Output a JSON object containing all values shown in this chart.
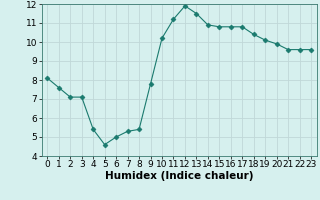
{
  "x": [
    0,
    1,
    2,
    3,
    4,
    5,
    6,
    7,
    8,
    9,
    10,
    11,
    12,
    13,
    14,
    15,
    16,
    17,
    18,
    19,
    20,
    21,
    22,
    23
  ],
  "y": [
    8.1,
    7.6,
    7.1,
    7.1,
    5.4,
    4.6,
    5.0,
    5.3,
    5.4,
    7.8,
    10.2,
    11.2,
    11.9,
    11.5,
    10.9,
    10.8,
    10.8,
    10.8,
    10.4,
    10.1,
    9.9,
    9.6,
    9.6,
    9.6
  ],
  "line_color": "#1a7a6e",
  "marker": "D",
  "marker_size": 2.5,
  "bg_color": "#d6f0ee",
  "grid_color": "#c0d8d8",
  "xlabel": "Humidex (Indice chaleur)",
  "xlabel_fontsize": 7.5,
  "tick_fontsize": 6.5,
  "xlim": [
    -0.5,
    23.5
  ],
  "ylim": [
    4,
    12
  ],
  "yticks": [
    4,
    5,
    6,
    7,
    8,
    9,
    10,
    11,
    12
  ],
  "xticks": [
    0,
    1,
    2,
    3,
    4,
    5,
    6,
    7,
    8,
    9,
    10,
    11,
    12,
    13,
    14,
    15,
    16,
    17,
    18,
    19,
    20,
    21,
    22,
    23
  ]
}
